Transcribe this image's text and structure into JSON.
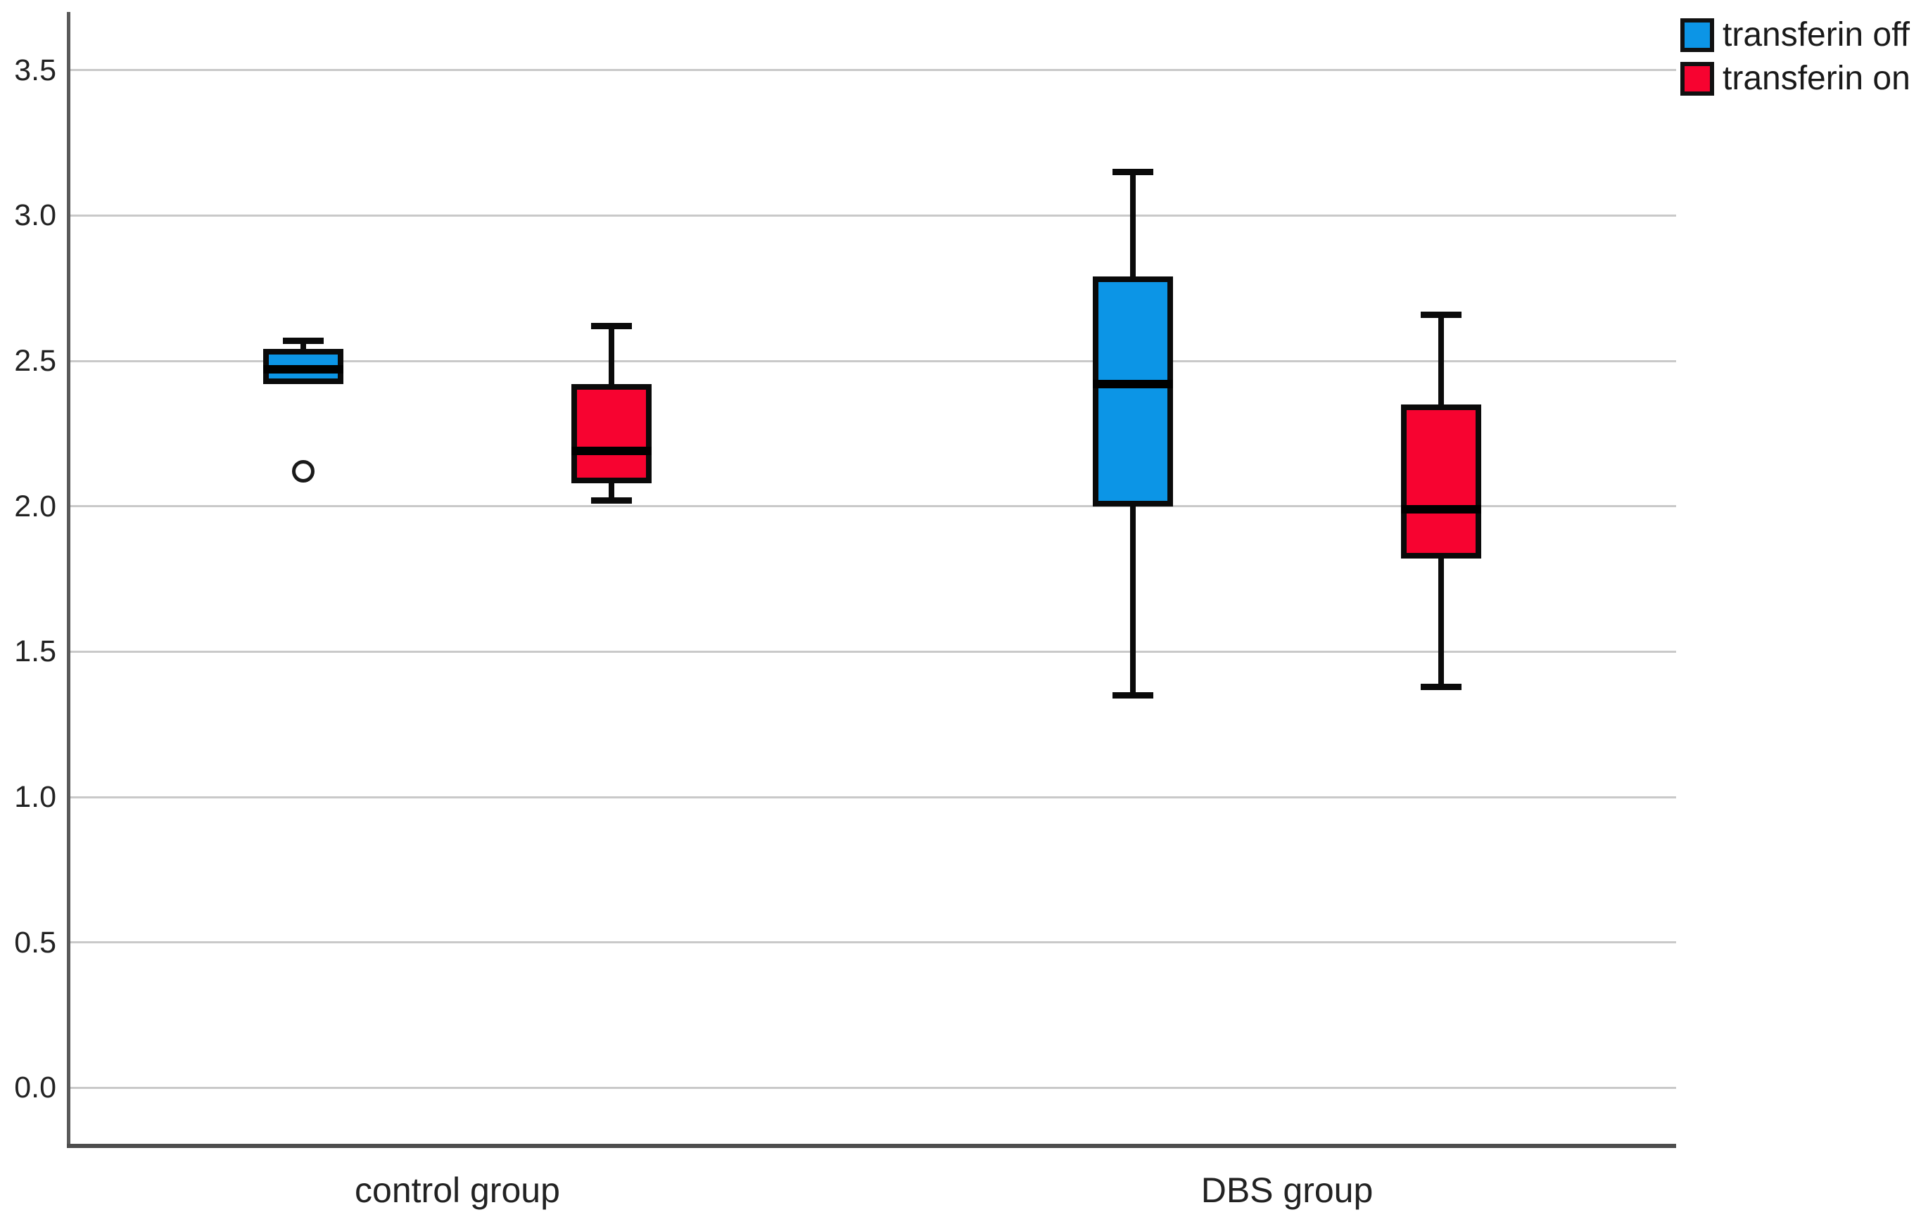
{
  "chart_data": {
    "type": "boxplot",
    "title": "",
    "xlabel": "",
    "ylabel": "",
    "categories": [
      "control group",
      "DBS group"
    ],
    "series": [
      {
        "name": "transferin off",
        "color": "#0C95E6",
        "boxes": [
          {
            "category": "control group",
            "whisker_low": null,
            "q1": 2.42,
            "median": 2.47,
            "q3": 2.54,
            "whisker_high": 2.57,
            "outliers": [
              2.12
            ]
          },
          {
            "category": "DBS group",
            "whisker_low": 1.35,
            "q1": 2.0,
            "median": 2.42,
            "q3": 2.79,
            "whisker_high": 3.15,
            "outliers": []
          }
        ]
      },
      {
        "name": "transferin on",
        "color": "#F70330",
        "boxes": [
          {
            "category": "control group",
            "whisker_low": 2.02,
            "q1": 2.08,
            "median": 2.19,
            "q3": 2.42,
            "whisker_high": 2.62,
            "outliers": []
          },
          {
            "category": "DBS group",
            "whisker_low": 1.38,
            "q1": 1.82,
            "median": 1.99,
            "q3": 2.35,
            "whisker_high": 2.66,
            "outliers": []
          }
        ]
      }
    ],
    "y_tick_labels": [
      "0.0",
      "0.5",
      "1.0",
      "1.5",
      "2.0",
      "2.5",
      "3.0",
      "3.5"
    ],
    "ylim": [
      -0.2,
      3.7
    ],
    "grid": true,
    "gridline_color": "#c9c9c9",
    "legend_position": "top-right"
  },
  "legend": {
    "items": [
      {
        "label": "transferin off",
        "color": "#0C95E6"
      },
      {
        "label": "transferin on",
        "color": "#F70330"
      }
    ]
  }
}
